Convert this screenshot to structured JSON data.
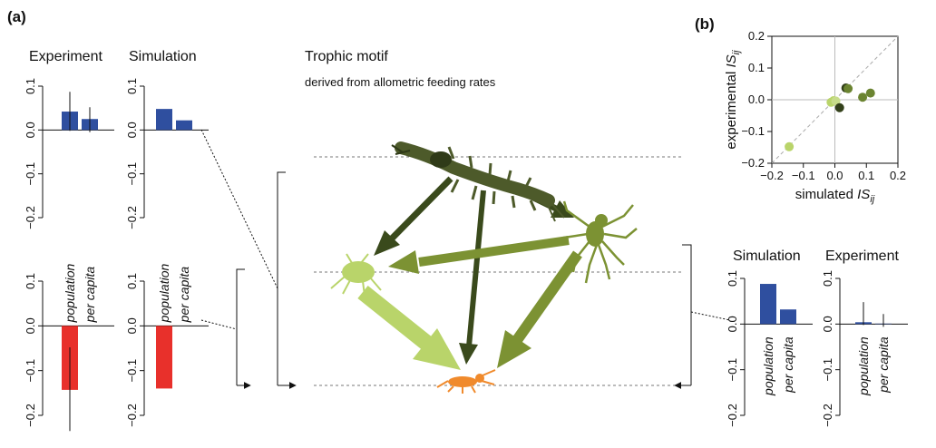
{
  "figure": {
    "panel_a_label": "(a)",
    "panel_b_label": "(b)",
    "motif_title": "Trophic motif",
    "motif_subtitle": "derived from allometric feeding rates"
  },
  "chart_data": [
    {
      "id": "a-top-experiment",
      "type": "bar",
      "title": "Experiment",
      "categories": [
        "population",
        "per capita"
      ],
      "values": [
        0.042,
        0.025
      ],
      "error_low": [
        -0.002,
        -0.005
      ],
      "error_high": [
        0.087,
        0.052
      ],
      "ylim": [
        -0.2,
        0.1
      ],
      "yticks": [
        0.1,
        0.0,
        -0.1,
        -0.2
      ],
      "ytick_labels": [
        "0.1",
        "0.0",
        "−0.1",
        "−0.2"
      ],
      "color": "#2f4f9f"
    },
    {
      "id": "a-top-simulation",
      "type": "bar",
      "title": "Simulation",
      "categories": [
        "population",
        "per capita"
      ],
      "values": [
        0.048,
        0.022
      ],
      "ylim": [
        -0.2,
        0.1
      ],
      "yticks": [
        0.1,
        0.0,
        -0.1,
        -0.2
      ],
      "ytick_labels": [
        "0.1",
        "0.0",
        "−0.1",
        "−0.2"
      ],
      "color": "#2f4f9f"
    },
    {
      "id": "a-bottom-experiment",
      "type": "bar",
      "categories": [
        "population",
        "per capita"
      ],
      "values": [
        -0.143,
        0.0
      ],
      "error_low": [
        -0.235,
        0.0
      ],
      "error_high": [
        -0.048,
        0.0
      ],
      "ylim": [
        -0.2,
        0.1
      ],
      "yticks": [
        0.1,
        0.0,
        -0.1,
        -0.2
      ],
      "ytick_labels": [
        "0.1",
        "0.0",
        "−0.1",
        "−0.2"
      ],
      "color": "#e8302b",
      "category_labels_inside": true
    },
    {
      "id": "a-bottom-simulation",
      "type": "bar",
      "categories": [
        "population",
        "per capita"
      ],
      "values": [
        -0.14,
        0.0
      ],
      "ylim": [
        -0.2,
        0.1
      ],
      "yticks": [
        0.1,
        0.0,
        -0.1,
        -0.2
      ],
      "ytick_labels": [
        "0.1",
        "0.0",
        "−0.1",
        "−0.2"
      ],
      "color": "#e8302b",
      "category_labels_inside": true
    },
    {
      "id": "a-right-simulation",
      "type": "bar",
      "title": "Simulation",
      "categories": [
        "population",
        "per capita"
      ],
      "values": [
        0.088,
        0.032
      ],
      "ylim": [
        -0.2,
        0.1
      ],
      "yticks": [
        0.1,
        0.0,
        -0.1,
        -0.2
      ],
      "ytick_labels": [
        "0.1",
        "0.0",
        "−0.1",
        "−0.2"
      ],
      "color": "#2f4f9f",
      "category_labels_below": true
    },
    {
      "id": "a-right-experiment",
      "type": "bar",
      "title": "Experiment",
      "categories": [
        "population",
        "per capita"
      ],
      "values": [
        0.004,
        0.001
      ],
      "error_low": [
        -0.002,
        -0.006
      ],
      "error_high": [
        0.048,
        0.022
      ],
      "ylim": [
        -0.2,
        0.1
      ],
      "yticks": [
        0.1,
        0.0,
        -0.1,
        -0.2
      ],
      "ytick_labels": [
        "0.1",
        "0.0",
        "−0.1",
        "−0.2"
      ],
      "color": "#2f4f9f",
      "category_labels_below": true
    },
    {
      "id": "b-scatter",
      "type": "scatter",
      "xlabel": "simulated ISij",
      "ylabel": "experimental ISij",
      "xlim": [
        -0.2,
        0.2
      ],
      "ylim": [
        -0.2,
        0.2
      ],
      "xticks": [
        -0.2,
        -0.1,
        0.0,
        0.1,
        0.2
      ],
      "xtick_labels": [
        "−0.2",
        "−0.1",
        "0.0",
        "0.1",
        "0.2"
      ],
      "yticks": [
        -0.2,
        -0.1,
        0.0,
        0.1,
        0.2
      ],
      "ytick_labels": [
        "−0.2",
        "−0.1",
        "0.0",
        "0.1",
        "0.2"
      ],
      "reference_line": "y = x (dashed)",
      "points": [
        {
          "x": -0.145,
          "y": -0.148,
          "color": "#b9d46a"
        },
        {
          "x": -0.012,
          "y": -0.008,
          "color": "#b9d46a"
        },
        {
          "x": -0.004,
          "y": -0.003,
          "color": "#b9d46a"
        },
        {
          "x": 0.003,
          "y": -0.004,
          "color": "#c7dc8a"
        },
        {
          "x": 0.015,
          "y": -0.025,
          "color": "#33401a"
        },
        {
          "x": 0.035,
          "y": 0.037,
          "color": "#33401a"
        },
        {
          "x": 0.042,
          "y": 0.035,
          "color": "#6b8431"
        },
        {
          "x": 0.088,
          "y": 0.008,
          "color": "#6b8431"
        },
        {
          "x": 0.113,
          "y": 0.021,
          "color": "#6b8431"
        }
      ]
    }
  ]
}
